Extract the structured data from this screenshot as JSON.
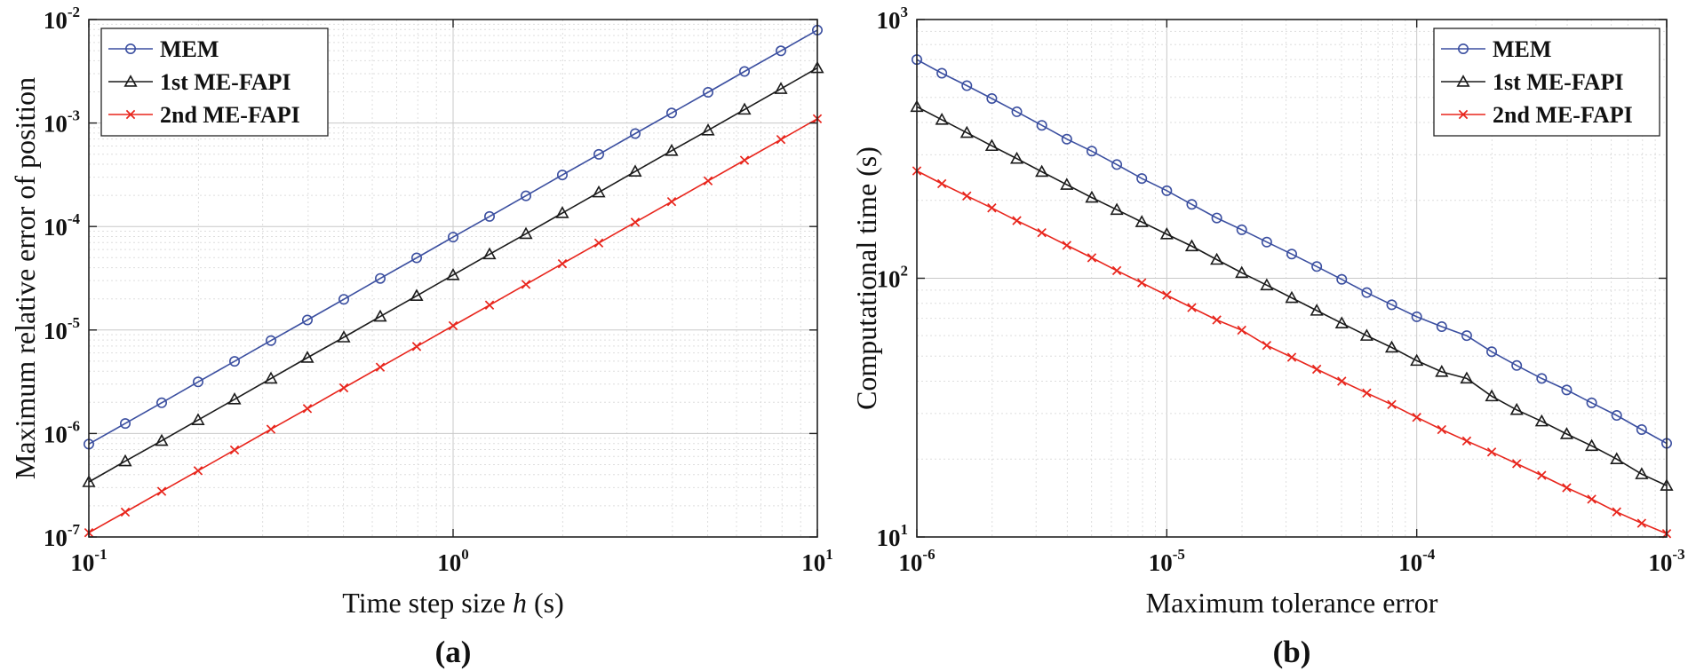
{
  "chart_data": [
    {
      "type": "line",
      "caption": "(a)",
      "xlabel": "Time step size ",
      "xlabel_var": "h",
      "xlabel_unit": " (s)",
      "ylabel": "Maximum relative error of position",
      "xscale": "log",
      "yscale": "log",
      "xlim": [
        0.1,
        10
      ],
      "ylim": [
        1e-07,
        0.01
      ],
      "grid": true,
      "legend_position": "top-left",
      "x_ticks": [
        {
          "base": "10",
          "exp": "-1"
        },
        {
          "base": "10",
          "exp": "0"
        },
        {
          "base": "10",
          "exp": "1"
        }
      ],
      "y_ticks": [
        {
          "base": "10",
          "exp": "-7"
        },
        {
          "base": "10",
          "exp": "-6"
        },
        {
          "base": "10",
          "exp": "-5"
        },
        {
          "base": "10",
          "exp": "-4"
        },
        {
          "base": "10",
          "exp": "-3"
        },
        {
          "base": "10",
          "exp": "-2"
        }
      ],
      "series": [
        {
          "name": "MEM",
          "color": "#3b4fa0",
          "marker": "circle",
          "x": [
            0.1,
            0.1259,
            0.1585,
            0.1995,
            0.2512,
            0.3162,
            0.3981,
            0.5012,
            0.631,
            0.7943,
            1,
            1.259,
            1.585,
            1.995,
            2.512,
            3.162,
            3.981,
            5.012,
            6.31,
            7.943,
            10
          ],
          "y": [
            7.9e-07,
            1.25e-06,
            1.98e-06,
            3.15e-06,
            4.98e-06,
            7.9e-06,
            1.25e-05,
            1.98e-05,
            3.15e-05,
            4.98e-05,
            7.9e-05,
            0.000125,
            0.000198,
            0.000315,
            0.000498,
            0.00079,
            0.00125,
            0.00198,
            0.00315,
            0.00498,
            0.0079
          ]
        },
        {
          "name": "1st ME-FAPI",
          "color": "#1a1a1a",
          "marker": "triangle",
          "x": [
            0.1,
            0.1259,
            0.1585,
            0.1995,
            0.2512,
            0.3162,
            0.3981,
            0.5012,
            0.631,
            0.7943,
            1,
            1.259,
            1.585,
            1.995,
            2.512,
            3.162,
            3.981,
            5.012,
            6.31,
            7.943,
            10
          ],
          "y": [
            3.4e-07,
            5.4e-07,
            8.5e-07,
            1.35e-06,
            2.14e-06,
            3.4e-06,
            5.4e-06,
            8.5e-06,
            1.35e-05,
            2.14e-05,
            3.4e-05,
            5.4e-05,
            8.5e-05,
            0.000135,
            0.000214,
            0.00034,
            0.00054,
            0.00085,
            0.00135,
            0.00214,
            0.0034
          ]
        },
        {
          "name": "2nd ME-FAPI",
          "color": "#e8251c",
          "marker": "cross",
          "x": [
            0.1,
            0.1259,
            0.1585,
            0.1995,
            0.2512,
            0.3162,
            0.3981,
            0.5012,
            0.631,
            0.7943,
            1,
            1.259,
            1.585,
            1.995,
            2.512,
            3.162,
            3.981,
            5.012,
            6.31,
            7.943,
            10
          ],
          "y": [
            1.1e-07,
            1.74e-07,
            2.76e-07,
            4.37e-07,
            6.93e-07,
            1.1e-06,
            1.74e-06,
            2.76e-06,
            4.37e-06,
            6.93e-06,
            1.1e-05,
            1.74e-05,
            2.76e-05,
            4.37e-05,
            6.93e-05,
            0.00011,
            0.000174,
            0.000276,
            0.000437,
            0.000693,
            0.0011
          ]
        }
      ]
    },
    {
      "type": "line",
      "caption": "(b)",
      "xlabel": "Maximum tolerance error",
      "xlabel_var": "",
      "xlabel_unit": "",
      "ylabel": "Computational time (s)",
      "xscale": "log",
      "yscale": "log",
      "xlim": [
        1e-06,
        0.001
      ],
      "ylim": [
        10,
        1000
      ],
      "grid": true,
      "legend_position": "top-right",
      "x_ticks": [
        {
          "base": "10",
          "exp": "-6"
        },
        {
          "base": "10",
          "exp": "-5"
        },
        {
          "base": "10",
          "exp": "-4"
        },
        {
          "base": "10",
          "exp": "-3"
        }
      ],
      "y_ticks": [
        {
          "base": "10",
          "exp": "1"
        },
        {
          "base": "10",
          "exp": "2"
        },
        {
          "base": "10",
          "exp": "3"
        }
      ],
      "series": [
        {
          "name": "MEM",
          "color": "#3b4fa0",
          "marker": "circle",
          "x": [
            1e-06,
            1.259e-06,
            1.585e-06,
            1.995e-06,
            2.512e-06,
            3.162e-06,
            3.981e-06,
            5.012e-06,
            6.31e-06,
            7.943e-06,
            1e-05,
            1.259e-05,
            1.585e-05,
            1.995e-05,
            2.512e-05,
            3.162e-05,
            3.981e-05,
            5.012e-05,
            6.31e-05,
            7.943e-05,
            0.0001,
            0.0001259,
            0.0001585,
            0.0001995,
            0.0002512,
            0.0003162,
            0.0003981,
            0.0005012,
            0.000631,
            0.0007943,
            0.001
          ],
          "y": [
            700,
            620,
            555,
            495,
            440,
            390,
            345,
            310,
            275,
            243,
            218,
            193,
            171,
            154,
            138,
            124,
            111,
            99,
            88,
            79,
            71,
            65,
            60,
            52,
            46,
            41,
            37,
            33,
            29.5,
            26,
            23
          ]
        },
        {
          "name": "1st ME-FAPI",
          "color": "#1a1a1a",
          "marker": "triangle",
          "x": [
            1e-06,
            1.259e-06,
            1.585e-06,
            1.995e-06,
            2.512e-06,
            3.162e-06,
            3.981e-06,
            5.012e-06,
            6.31e-06,
            7.943e-06,
            1e-05,
            1.259e-05,
            1.585e-05,
            1.995e-05,
            2.512e-05,
            3.162e-05,
            3.981e-05,
            5.012e-05,
            6.31e-05,
            7.943e-05,
            0.0001,
            0.0001259,
            0.0001585,
            0.0001995,
            0.0002512,
            0.0003162,
            0.0003981,
            0.0005012,
            0.000631,
            0.0007943,
            0.001
          ],
          "y": [
            460,
            410,
            365,
            325,
            290,
            258,
            230,
            205,
            184,
            165,
            148,
            133,
            118,
            105,
            94,
            84,
            75,
            67,
            60,
            54,
            48,
            43.5,
            41,
            35,
            31,
            28,
            25,
            22.5,
            20,
            17.5,
            15.8
          ]
        },
        {
          "name": "2nd ME-FAPI",
          "color": "#e8251c",
          "marker": "cross",
          "x": [
            1e-06,
            1.259e-06,
            1.585e-06,
            1.995e-06,
            2.512e-06,
            3.162e-06,
            3.981e-06,
            5.012e-06,
            6.31e-06,
            7.943e-06,
            1e-05,
            1.259e-05,
            1.585e-05,
            1.995e-05,
            2.512e-05,
            3.162e-05,
            3.981e-05,
            5.012e-05,
            6.31e-05,
            7.943e-05,
            0.0001,
            0.0001259,
            0.0001585,
            0.0001995,
            0.0002512,
            0.0003162,
            0.0003981,
            0.0005012,
            0.000631,
            0.0007943,
            0.001
          ],
          "y": [
            260,
            232,
            208,
            187,
            167,
            150,
            134,
            120,
            107,
            96,
            86,
            77,
            69,
            63,
            55,
            49.5,
            44.5,
            40,
            36,
            32.5,
            29,
            26,
            23.5,
            21.3,
            19.2,
            17.3,
            15.5,
            14,
            12.5,
            11.3,
            10.3
          ]
        }
      ]
    }
  ]
}
